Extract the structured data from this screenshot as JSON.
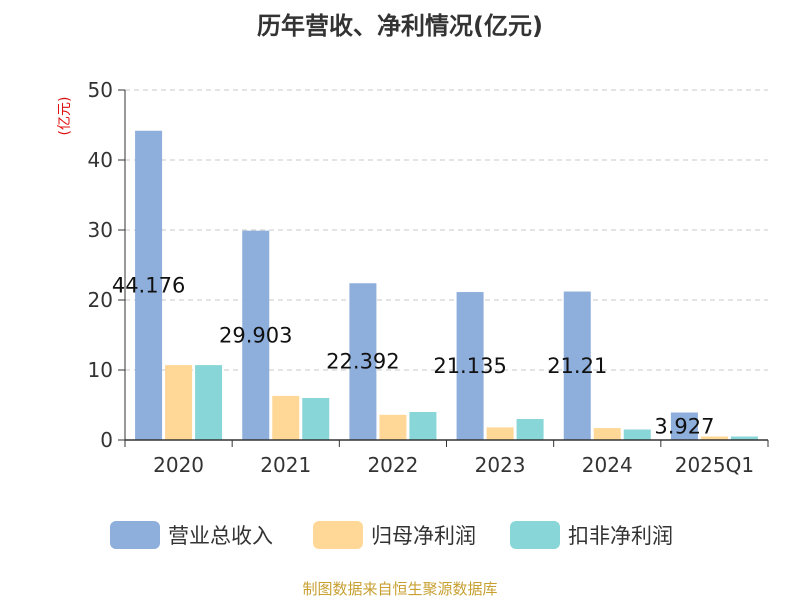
{
  "chart_data": {
    "type": "bar",
    "title": "历年营收、净利情况(亿元)",
    "ylabel": "(亿元)",
    "xlabel": "",
    "ylim": [
      0,
      50
    ],
    "yticks": [
      "0",
      "10",
      "20",
      "30",
      "40",
      "50"
    ],
    "grid": true,
    "legend_position": "bottom",
    "categories": [
      "2020",
      "2021",
      "2022",
      "2023",
      "2024",
      "2025Q1"
    ],
    "series": [
      {
        "name": "营业总收入",
        "color": "#8eaedb",
        "values": [
          44.176,
          29.903,
          22.392,
          21.135,
          21.21,
          3.927
        ]
      },
      {
        "name": "归母净利润",
        "color": "#ffd796",
        "values": [
          10.7,
          6.3,
          3.6,
          1.8,
          1.7,
          0.5
        ]
      },
      {
        "name": "扣非净利润",
        "color": "#88d6d8",
        "values": [
          10.7,
          6.0,
          4.0,
          3.0,
          1.5,
          0.5
        ]
      }
    ],
    "data_labels": [
      "44.176",
      "29.903",
      "22.392",
      "21.135",
      "21.21",
      "3.927"
    ]
  },
  "source": "制图数据来自恒生聚源数据库"
}
